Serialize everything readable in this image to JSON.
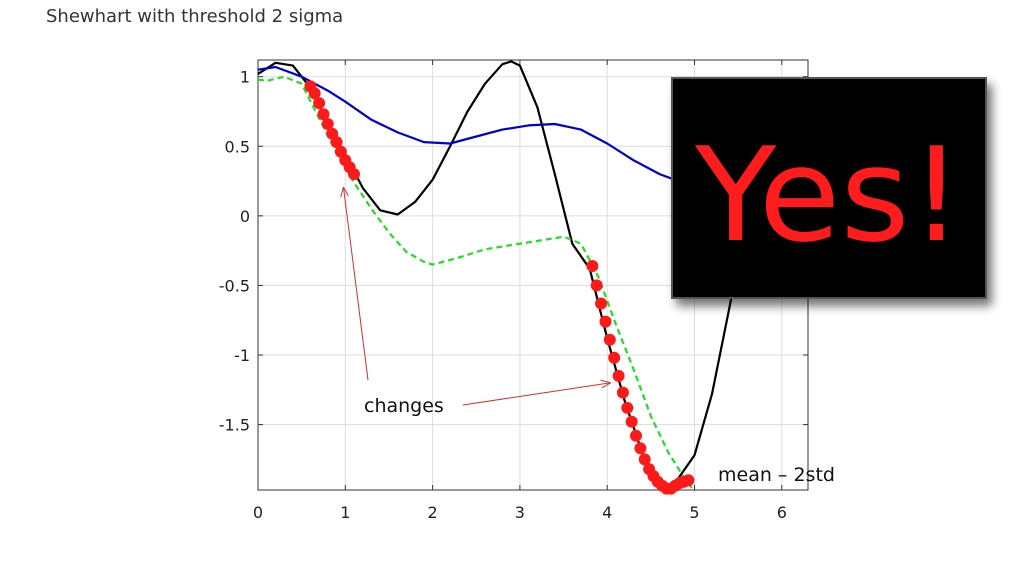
{
  "slide": {
    "title": "Shewhart with threshold 2 sigma"
  },
  "chart_data": {
    "type": "line",
    "title": "",
    "xlabel": "",
    "ylabel": "",
    "xlim": [
      0,
      6.3
    ],
    "ylim": [
      -1.97,
      1.12
    ],
    "grid": true,
    "x_ticks": [
      0,
      1,
      2,
      3,
      4,
      5,
      6
    ],
    "y_ticks": [
      1,
      0.5,
      0,
      -0.5,
      -1,
      -1.5
    ],
    "colors": {
      "signal": "#000000",
      "mean": "#0000cc",
      "threshold": "#22dd22",
      "changes": "#ff1a1a",
      "annotation": "#d03030"
    },
    "series": [
      {
        "style": "solid",
        "color": "#000000",
        "x": [
          0,
          0.2,
          0.4,
          0.6,
          0.8,
          1.0,
          1.2,
          1.4,
          1.6,
          1.8,
          2.0,
          2.2,
          2.4,
          2.6,
          2.8,
          2.9,
          3.0,
          3.2,
          3.4,
          3.6,
          3.8,
          4.0,
          4.2,
          4.4,
          4.6,
          4.7,
          4.8,
          5.0,
          5.2,
          5.4,
          5.6,
          5.8
        ],
        "y": [
          1.02,
          1.1,
          1.08,
          0.92,
          0.66,
          0.44,
          0.2,
          0.04,
          0.01,
          0.1,
          0.26,
          0.5,
          0.75,
          0.95,
          1.09,
          1.11,
          1.08,
          0.78,
          0.3,
          -0.2,
          -0.38,
          -0.88,
          -1.33,
          -1.7,
          -1.92,
          -1.96,
          -1.9,
          -1.72,
          -1.28,
          -0.66,
          0.0,
          0.6
        ]
      },
      {
        "style": "solid",
        "color": "#0000cc",
        "x": [
          0,
          0.2,
          0.5,
          0.8,
          1.0,
          1.3,
          1.6,
          1.9,
          2.2,
          2.5,
          2.8,
          3.1,
          3.4,
          3.7,
          4.0,
          4.3,
          4.6,
          4.9,
          5.2
        ],
        "y": [
          1.05,
          1.07,
          1.0,
          0.9,
          0.82,
          0.69,
          0.6,
          0.53,
          0.52,
          0.57,
          0.62,
          0.65,
          0.66,
          0.62,
          0.52,
          0.4,
          0.3,
          0.23,
          0.2
        ]
      },
      {
        "style": "dashed",
        "color": "#22dd22",
        "x": [
          0,
          0.1,
          0.3,
          0.5,
          0.7,
          0.9,
          1.1,
          1.3,
          1.5,
          1.7,
          1.9,
          2.0,
          2.3,
          2.6,
          2.9,
          3.2,
          3.5,
          3.7,
          3.9,
          4.1,
          4.3,
          4.5,
          4.7,
          4.9,
          5.0
        ],
        "y": [
          0.98,
          0.97,
          1.0,
          0.95,
          0.7,
          0.45,
          0.24,
          0.05,
          -0.12,
          -0.26,
          -0.33,
          -0.35,
          -0.3,
          -0.24,
          -0.21,
          -0.18,
          -0.15,
          -0.2,
          -0.44,
          -0.78,
          -1.1,
          -1.44,
          -1.7,
          -1.9,
          -1.98
        ]
      }
    ],
    "change_points": {
      "color": "#ff1a1a",
      "x": [
        0.6,
        0.65,
        0.7,
        0.75,
        0.8,
        0.85,
        0.9,
        0.95,
        1.0,
        1.05,
        1.1,
        3.83,
        3.88,
        3.93,
        3.98,
        4.03,
        4.08,
        4.13,
        4.18,
        4.23,
        4.28,
        4.33,
        4.38,
        4.43,
        4.48,
        4.53,
        4.58,
        4.63,
        4.68,
        4.73,
        4.78,
        4.83,
        4.88,
        4.93
      ],
      "y": [
        0.93,
        0.88,
        0.81,
        0.73,
        0.66,
        0.59,
        0.53,
        0.46,
        0.4,
        0.35,
        0.3,
        -0.36,
        -0.5,
        -0.63,
        -0.76,
        -0.89,
        -1.02,
        -1.15,
        -1.27,
        -1.38,
        -1.48,
        -1.58,
        -1.67,
        -1.75,
        -1.82,
        -1.87,
        -1.91,
        -1.94,
        -1.96,
        -1.96,
        -1.94,
        -1.92,
        -1.91,
        -1.9
      ]
    },
    "annotations": {
      "changes_label": "changes",
      "threshold_label": "mean – 2std",
      "changes_arrow_targets": [
        {
          "x": 0.98,
          "y": 0.2
        },
        {
          "x": 4.03,
          "y": -1.2
        }
      ]
    },
    "overlay": {
      "text": "Yes!",
      "background": "#000000",
      "text_color": "#ff1a1a"
    }
  }
}
